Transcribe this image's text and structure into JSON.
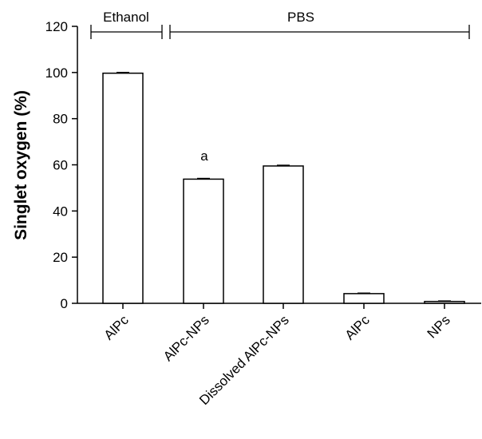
{
  "chart_data": {
    "type": "bar",
    "title": "",
    "xlabel": "",
    "ylabel": "Singlet oxygen (%)",
    "ylim": [
      0,
      120
    ],
    "yticks": [
      0,
      20,
      40,
      60,
      80,
      100,
      120
    ],
    "categories": [
      "AlPc",
      "AlPc-NPs",
      "Dissolved AlPc-NPs",
      "AlPc",
      "NPs"
    ],
    "values": [
      99.7,
      53.8,
      59.5,
      4.2,
      0.8
    ],
    "errors": [
      0.3,
      0.3,
      0.3,
      0.2,
      0.2
    ],
    "bar_fill": "#ffffff",
    "bar_stroke": "#000000",
    "grid": false,
    "groups": [
      {
        "label": "Ethanol",
        "start_index": 0,
        "end_index": 0
      },
      {
        "label": "PBS",
        "start_index": 1,
        "end_index": 4
      }
    ],
    "annotations": [
      {
        "category_index": 1,
        "text": "a"
      }
    ]
  }
}
